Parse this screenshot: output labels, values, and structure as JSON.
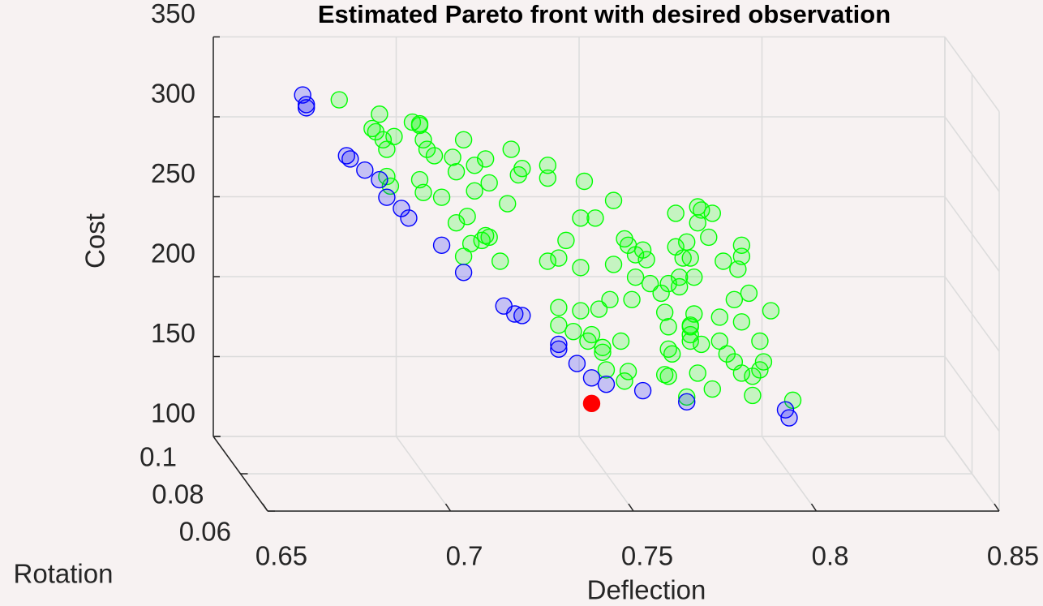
{
  "chart_data": {
    "type": "scatter3d",
    "title": "Estimated Pareto front with desired observation",
    "x_label": "Deflection",
    "y_label": "Rotation",
    "z_label": "Cost",
    "xlim": [
      0.65,
      0.85
    ],
    "ylim": [
      0.06,
      0.1
    ],
    "zlim": [
      100,
      350
    ],
    "xticks": [
      0.65,
      0.7,
      0.75,
      0.8,
      0.85
    ],
    "yticks": [
      0.06,
      0.08,
      0.1
    ],
    "zticks": [
      100,
      150,
      200,
      250,
      300,
      350
    ],
    "grid": true,
    "series": [
      {
        "color": "#00ff00",
        "points": [
          [
            0.677,
            0.08,
            334
          ],
          [
            0.688,
            0.08,
            325
          ],
          [
            0.697,
            0.08,
            320
          ],
          [
            0.699,
            0.08,
            319
          ],
          [
            0.699,
            0.08,
            318
          ],
          [
            0.686,
            0.08,
            316
          ],
          [
            0.687,
            0.08,
            314
          ],
          [
            0.692,
            0.08,
            311
          ],
          [
            0.689,
            0.08,
            309
          ],
          [
            0.69,
            0.08,
            303
          ],
          [
            0.7,
            0.08,
            309
          ],
          [
            0.711,
            0.08,
            309
          ],
          [
            0.701,
            0.08,
            303
          ],
          [
            0.703,
            0.08,
            299
          ],
          [
            0.724,
            0.08,
            303
          ],
          [
            0.708,
            0.08,
            298
          ],
          [
            0.717,
            0.08,
            297
          ],
          [
            0.714,
            0.08,
            293
          ],
          [
            0.709,
            0.08,
            289
          ],
          [
            0.727,
            0.08,
            291
          ],
          [
            0.734,
            0.08,
            293
          ],
          [
            0.734,
            0.08,
            285
          ],
          [
            0.699,
            0.08,
            284
          ],
          [
            0.69,
            0.08,
            286
          ],
          [
            0.691,
            0.08,
            280
          ],
          [
            0.7,
            0.08,
            276
          ],
          [
            0.705,
            0.08,
            273
          ],
          [
            0.714,
            0.08,
            277
          ],
          [
            0.718,
            0.08,
            282
          ],
          [
            0.726,
            0.08,
            287
          ],
          [
            0.744,
            0.08,
            283
          ],
          [
            0.723,
            0.08,
            269
          ],
          [
            0.752,
            0.08,
            271
          ],
          [
            0.743,
            0.08,
            260
          ],
          [
            0.747,
            0.08,
            260
          ],
          [
            0.769,
            0.08,
            263
          ],
          [
            0.775,
            0.08,
            267
          ],
          [
            0.776,
            0.08,
            265
          ],
          [
            0.775,
            0.08,
            257
          ],
          [
            0.779,
            0.08,
            263
          ],
          [
            0.712,
            0.08,
            261
          ],
          [
            0.709,
            0.08,
            257
          ],
          [
            0.717,
            0.08,
            249
          ],
          [
            0.716,
            0.08,
            246
          ],
          [
            0.713,
            0.08,
            244
          ],
          [
            0.718,
            0.08,
            248
          ],
          [
            0.721,
            0.08,
            233
          ],
          [
            0.711,
            0.08,
            236
          ],
          [
            0.734,
            0.08,
            233
          ],
          [
            0.737,
            0.08,
            235
          ],
          [
            0.739,
            0.08,
            246
          ],
          [
            0.743,
            0.08,
            229
          ],
          [
            0.752,
            0.08,
            231
          ],
          [
            0.755,
            0.08,
            247
          ],
          [
            0.756,
            0.08,
            243
          ],
          [
            0.76,
            0.08,
            240
          ],
          [
            0.761,
            0.08,
            234
          ],
          [
            0.758,
            0.08,
            237
          ],
          [
            0.772,
            0.08,
            245
          ],
          [
            0.769,
            0.08,
            242
          ],
          [
            0.773,
            0.08,
            235
          ],
          [
            0.778,
            0.08,
            248
          ],
          [
            0.787,
            0.08,
            243
          ],
          [
            0.782,
            0.08,
            233
          ],
          [
            0.786,
            0.08,
            228
          ],
          [
            0.787,
            0.08,
            236
          ],
          [
            0.758,
            0.08,
            223
          ],
          [
            0.762,
            0.08,
            219
          ],
          [
            0.767,
            0.08,
            219
          ],
          [
            0.77,
            0.08,
            223
          ],
          [
            0.774,
            0.08,
            223
          ],
          [
            0.765,
            0.08,
            213
          ],
          [
            0.757,
            0.08,
            209
          ],
          [
            0.751,
            0.08,
            209
          ],
          [
            0.748,
            0.08,
            203
          ],
          [
            0.737,
            0.08,
            204
          ],
          [
            0.737,
            0.08,
            193
          ],
          [
            0.743,
            0.08,
            202
          ],
          [
            0.741,
            0.08,
            189
          ],
          [
            0.746,
            0.08,
            187
          ],
          [
            0.745,
            0.08,
            183
          ],
          [
            0.749,
            0.08,
            179
          ],
          [
            0.749,
            0.08,
            176
          ],
          [
            0.754,
            0.08,
            183
          ],
          [
            0.75,
            0.08,
            165
          ],
          [
            0.756,
            0.08,
            164
          ],
          [
            0.755,
            0.08,
            158
          ],
          [
            0.766,
            0.08,
            201
          ],
          [
            0.767,
            0.08,
            192
          ],
          [
            0.767,
            0.08,
            178
          ],
          [
            0.768,
            0.08,
            175
          ],
          [
            0.774,
            0.08,
            200
          ],
          [
            0.773,
            0.08,
            193
          ],
          [
            0.773,
            0.08,
            187
          ],
          [
            0.773,
            0.08,
            183
          ],
          [
            0.776,
            0.08,
            181
          ],
          [
            0.775,
            0.08,
            163
          ],
          [
            0.781,
            0.08,
            198
          ],
          [
            0.785,
            0.08,
            209
          ],
          [
            0.789,
            0.08,
            213
          ],
          [
            0.795,
            0.08,
            202
          ],
          [
            0.787,
            0.08,
            195
          ],
          [
            0.781,
            0.08,
            183
          ],
          [
            0.783,
            0.08,
            175
          ],
          [
            0.785,
            0.08,
            170
          ],
          [
            0.787,
            0.08,
            163
          ],
          [
            0.792,
            0.08,
            183
          ],
          [
            0.793,
            0.08,
            170
          ],
          [
            0.79,
            0.08,
            161
          ],
          [
            0.792,
            0.08,
            165
          ],
          [
            0.779,
            0.08,
            153
          ],
          [
            0.79,
            0.08,
            149
          ],
          [
            0.772,
            0.08,
            148
          ],
          [
            0.766,
            0.08,
            162
          ],
          [
            0.801,
            0.08,
            146
          ],
          [
            0.767,
            0.08,
            161
          ],
          [
            0.773,
            0.08,
            192
          ],
          [
            0.77,
            0.08,
            217
          ],
          [
            0.771,
            0.08,
            235
          ]
        ]
      },
      {
        "color": "#0000ff",
        "points": [
          [
            0.667,
            0.08,
            337
          ],
          [
            0.668,
            0.08,
            331
          ],
          [
            0.668,
            0.08,
            329
          ],
          [
            0.679,
            0.08,
            299
          ],
          [
            0.68,
            0.08,
            297
          ],
          [
            0.684,
            0.08,
            290
          ],
          [
            0.688,
            0.08,
            284
          ],
          [
            0.69,
            0.08,
            273
          ],
          [
            0.694,
            0.08,
            266
          ],
          [
            0.696,
            0.08,
            260
          ],
          [
            0.705,
            0.08,
            243
          ],
          [
            0.711,
            0.08,
            226
          ],
          [
            0.722,
            0.08,
            205
          ],
          [
            0.725,
            0.08,
            200
          ],
          [
            0.727,
            0.08,
            199
          ],
          [
            0.737,
            0.08,
            181
          ],
          [
            0.737,
            0.08,
            178
          ],
          [
            0.742,
            0.08,
            169
          ],
          [
            0.746,
            0.08,
            160
          ],
          [
            0.75,
            0.08,
            156
          ],
          [
            0.76,
            0.08,
            152
          ],
          [
            0.772,
            0.08,
            145
          ],
          [
            0.799,
            0.08,
            140
          ],
          [
            0.8,
            0.08,
            135
          ]
        ]
      },
      {
        "color": "#ff0000",
        "points": [
          [
            0.746,
            0.08,
            144
          ]
        ]
      }
    ]
  }
}
